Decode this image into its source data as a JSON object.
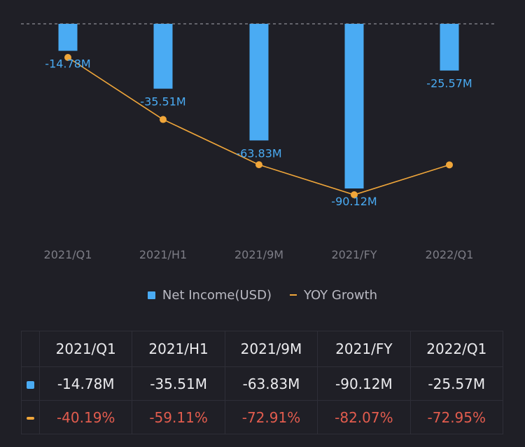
{
  "chart_data": {
    "type": "bar",
    "categories": [
      "2021/Q1",
      "2021/H1",
      "2021/9M",
      "2021/FY",
      "2022/Q1"
    ],
    "series": [
      {
        "name": "Net Income(USD)",
        "kind": "bar",
        "values": [
          -14.78,
          -35.51,
          -63.83,
          -90.12,
          -25.57
        ],
        "labels": [
          "-14.78M",
          "-35.51M",
          "-63.83M",
          "-90.12M",
          "-25.57M"
        ],
        "color": "#4aabf3"
      },
      {
        "name": "YOY Growth",
        "kind": "line",
        "values": [
          -40.19,
          -59.11,
          -72.91,
          -82.07,
          -72.95
        ],
        "labels": [
          "-40.19%",
          "-59.11%",
          "-72.91%",
          "-82.07%",
          "-72.95%"
        ],
        "color": "#f0a63a"
      }
    ],
    "bar_ylim": [
      -90.12,
      0
    ],
    "line_ylim": [
      -40.19,
      -82.07
    ],
    "grid": "dashed zero line"
  },
  "legend": {
    "bar_label": "Net Income(USD)",
    "line_label": "YOY Growth"
  },
  "table": {
    "headers": [
      "2021/Q1",
      "2021/H1",
      "2021/9M",
      "2021/FY",
      "2022/Q1"
    ],
    "income": [
      "-14.78M",
      "-35.51M",
      "-63.83M",
      "-90.12M",
      "-25.57M"
    ],
    "growth": [
      "-40.19%",
      "-59.11%",
      "-72.91%",
      "-82.07%",
      "-72.95%"
    ]
  },
  "colors": {
    "background": "#1f1f26",
    "bar": "#4aabf3",
    "line": "#f0a63a",
    "negative": "#e25c4e",
    "axis_text": "#7d7d86"
  }
}
